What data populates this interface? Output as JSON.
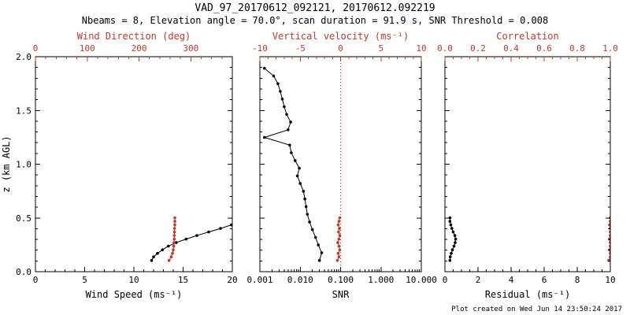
{
  "header": {
    "title": "VAD_97_20170612_092121, 20170612.092219",
    "subtitle": "Nbeams = 8, Elevation angle = 70.0°, scan duration = 91.9 s, SNR Threshold = 0.008"
  },
  "footer": {
    "created": "Plot created on Wed Jun 14 23:50:24 2017"
  },
  "colors": {
    "axis_primary": "#000000",
    "axis_secondary": "#c0392b",
    "background": "#ffffff"
  },
  "yaxis": {
    "label": "z (km AGL)",
    "lim": [
      0,
      2
    ],
    "ticks": [
      0,
      0.5,
      1,
      1.5,
      2
    ],
    "tick_labels": [
      "0.0",
      "0.5",
      "1.0",
      "1.5",
      "2.0"
    ],
    "minor_step": 0.1
  },
  "chart_data": [
    {
      "type": "line",
      "name": "wind",
      "x_bottom": {
        "label": "Wind Speed (ms⁻¹)",
        "scale": "linear",
        "lim": [
          0,
          20
        ],
        "ticks": [
          0,
          5,
          10,
          15,
          20
        ],
        "tick_labels": [
          "0",
          "5",
          "10",
          "15",
          "20"
        ],
        "minor_step": 1
      },
      "x_top": {
        "label": "Wind Direction (deg)",
        "scale": "linear",
        "lim": [
          0,
          380
        ],
        "ticks": [
          0,
          100,
          200,
          300
        ],
        "tick_labels": [
          "0",
          "100",
          "200",
          "300"
        ],
        "minor_step": 20
      },
      "series": [
        {
          "name": "wind-speed",
          "axis": "bottom",
          "color": "primary",
          "z": [
            0.105,
            0.138,
            0.171,
            0.204,
            0.237,
            0.27,
            0.303,
            0.336,
            0.369,
            0.402,
            0.435
          ],
          "values": [
            11.8,
            12.0,
            12.4,
            12.9,
            13.5,
            14.3,
            15.3,
            16.4,
            17.6,
            18.8,
            19.9
          ]
        },
        {
          "name": "wind-direction",
          "axis": "top",
          "color": "secondary",
          "z": [
            0.105,
            0.138,
            0.171,
            0.204,
            0.237,
            0.27,
            0.303,
            0.336,
            0.369,
            0.402,
            0.435,
            0.468,
            0.501
          ],
          "values": [
            258,
            262,
            264.5,
            266,
            267,
            267.5,
            268,
            268,
            268.5,
            268.5,
            269,
            269,
            269
          ]
        }
      ]
    },
    {
      "type": "line",
      "name": "snr",
      "x_bottom": {
        "label": "SNR",
        "scale": "log",
        "lim": [
          0.001,
          10
        ],
        "ticks": [
          0.001,
          0.01,
          0.1,
          1,
          10
        ],
        "tick_labels": [
          "0.001",
          "0.010",
          "0.100",
          "1.000",
          "10.000"
        ]
      },
      "x_top": {
        "label": "Vertical velocity (ms⁻¹)",
        "scale": "linear",
        "lim": [
          -10,
          10
        ],
        "ticks": [
          -10,
          -5,
          0,
          5,
          10
        ],
        "tick_labels": [
          "-10",
          "-5",
          "0",
          "5",
          "10"
        ],
        "minor_step": 1
      },
      "ref_line": {
        "axis": "top",
        "value": 0,
        "style": "dotted",
        "color": "secondary"
      },
      "series": [
        {
          "name": "snr",
          "axis": "bottom",
          "color": "primary",
          "z": [
            0.105,
            0.176,
            0.248,
            0.319,
            0.391,
            0.462,
            0.534,
            0.605,
            0.677,
            0.748,
            0.82,
            0.891,
            0.963,
            1.034,
            1.106,
            1.177,
            1.249,
            1.32,
            1.392,
            1.463,
            1.535,
            1.606,
            1.678,
            1.749,
            1.821,
            1.892
          ],
          "values": [
            0.03,
            0.034,
            0.028,
            0.024,
            0.02,
            0.017,
            0.015,
            0.014,
            0.013,
            0.012,
            0.01,
            0.0085,
            0.0095,
            0.0075,
            0.006,
            0.0055,
            0.0013,
            0.005,
            0.0058,
            0.0046,
            0.004,
            0.0036,
            0.0032,
            0.0028,
            0.0022,
            0.0013
          ]
        },
        {
          "name": "vertical-velocity",
          "axis": "top",
          "color": "secondary",
          "z": [
            0.105,
            0.138,
            0.171,
            0.204,
            0.237,
            0.27,
            0.303,
            0.336,
            0.369,
            0.402,
            0.435,
            0.468,
            0.501
          ],
          "values": [
            -0.4,
            -0.2,
            -0.3,
            -0.1,
            -0.2,
            -0.35,
            -0.2,
            -0.1,
            -0.25,
            -0.15,
            -0.3,
            -0.2,
            -0.1
          ]
        }
      ]
    },
    {
      "type": "line",
      "name": "residual",
      "x_bottom": {
        "label": "Residual (ms⁻¹)",
        "scale": "linear",
        "lim": [
          0,
          10
        ],
        "ticks": [
          0,
          2,
          4,
          6,
          8,
          10
        ],
        "tick_labels": [
          "0",
          "2",
          "4",
          "6",
          "8",
          "10"
        ],
        "minor_step": 0.5
      },
      "x_top": {
        "label": "Correlation",
        "scale": "linear",
        "lim": [
          0,
          1
        ],
        "ticks": [
          0,
          0.2,
          0.4,
          0.6,
          0.8,
          1
        ],
        "tick_labels": [
          "0.0",
          "0.2",
          "0.4",
          "0.6",
          "0.8",
          "1.0"
        ],
        "minor_step": 0.05
      },
      "series": [
        {
          "name": "residual",
          "axis": "bottom",
          "color": "primary",
          "z": [
            0.105,
            0.138,
            0.171,
            0.204,
            0.237,
            0.27,
            0.303,
            0.336,
            0.369,
            0.402,
            0.435,
            0.468,
            0.501
          ],
          "values": [
            0.3,
            0.32,
            0.38,
            0.45,
            0.55,
            0.62,
            0.65,
            0.6,
            0.5,
            0.42,
            0.35,
            0.3,
            0.3
          ]
        },
        {
          "name": "correlation",
          "axis": "top",
          "color": "secondary",
          "z": [
            0.105,
            0.138,
            0.171,
            0.204,
            0.237,
            0.27,
            0.303,
            0.336,
            0.369,
            0.402,
            0.435,
            0.468,
            0.501
          ],
          "values": [
            0.99,
            1.0,
            1.0,
            0.995,
            1.0,
            1.0,
            0.995,
            1.0,
            1.0,
            1.0,
            0.995,
            1.0,
            1.0
          ]
        }
      ]
    }
  ]
}
